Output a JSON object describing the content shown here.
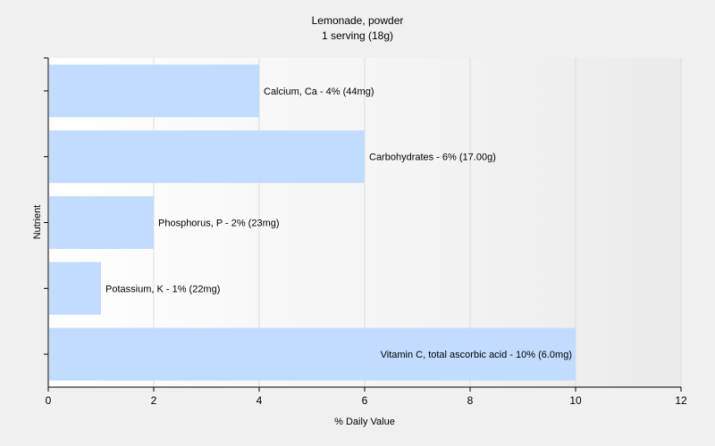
{
  "chart_data": {
    "type": "bar",
    "orientation": "horizontal",
    "title": "Lemonade, powder",
    "subtitle": "1 serving (18g)",
    "xlabel": "% Daily Value",
    "ylabel": "Nutrient",
    "xlim": [
      0,
      12
    ],
    "xticks": [
      0,
      2,
      4,
      6,
      8,
      10,
      12
    ],
    "grid": true,
    "categories": [
      "Calcium, Ca",
      "Carbohydrates",
      "Phosphorus, P",
      "Potassium, K",
      "Vitamin C, total ascorbic acid"
    ],
    "values": [
      4,
      6,
      2,
      1,
      10
    ],
    "labels": [
      "Calcium, Ca - 4% (44mg)",
      "Carbohydrates - 6% (17.00g)",
      "Phosphorus, P - 2% (23mg)",
      "Potassium, K - 1% (22mg)",
      "Vitamin C, total ascorbic acid - 10% (6.0mg)"
    ],
    "colors": {
      "bar": "#c2dcff",
      "plot_background": "#ffffff",
      "grid": "#dcdcdc"
    }
  }
}
